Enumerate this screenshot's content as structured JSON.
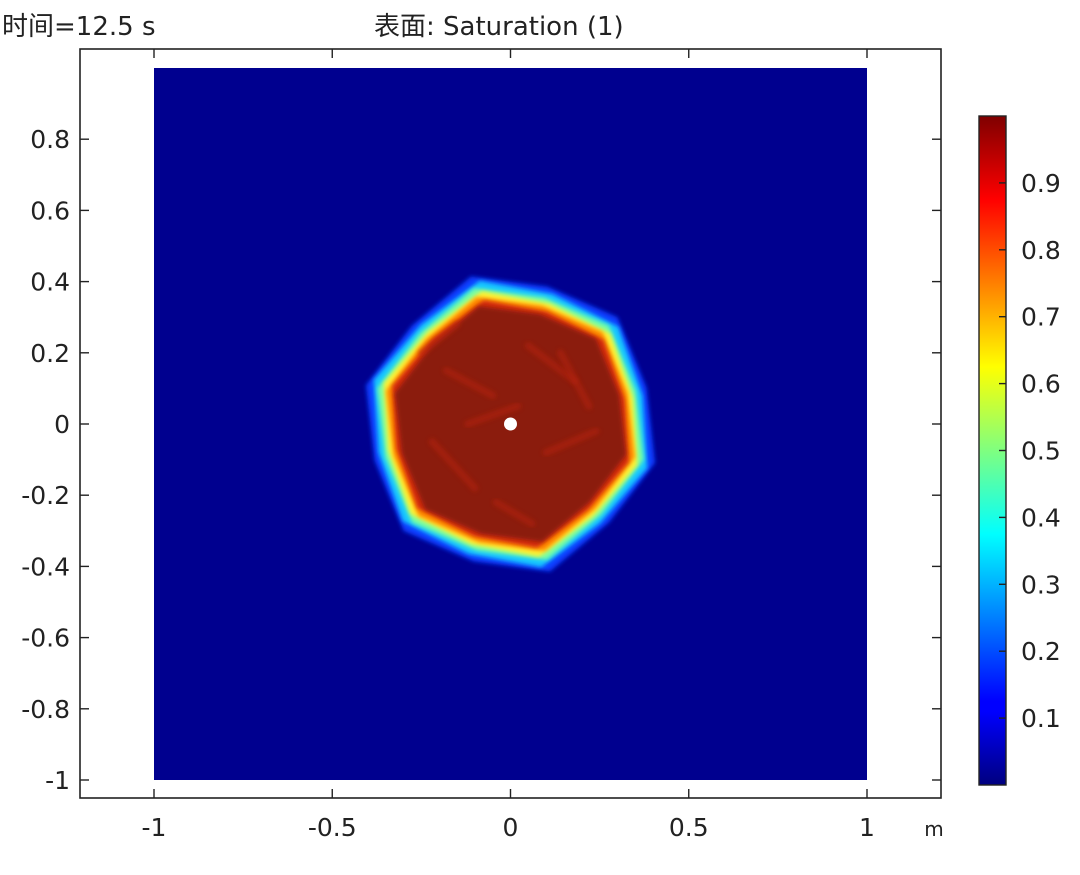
{
  "header": {
    "time_label": "时间=12.5 s",
    "surface_label": "表面: Saturation (1)"
  },
  "chart_data": {
    "type": "heatmap",
    "title": "表面: Saturation (1)",
    "subtitle": "时间=12.5 s",
    "xlabel": "m",
    "ylabel": "",
    "xlim": [
      -1.21,
      1.21
    ],
    "ylim": [
      -1.05,
      1.05
    ],
    "domain": {
      "x": [
        -1,
        1
      ],
      "y": [
        -1,
        1
      ]
    },
    "x_ticks": [
      {
        "value": -1,
        "label": "-1"
      },
      {
        "value": -0.5,
        "label": "-0.5"
      },
      {
        "value": 0,
        "label": "0"
      },
      {
        "value": 0.5,
        "label": "0.5"
      },
      {
        "value": 1,
        "label": "1"
      }
    ],
    "y_ticks": [
      {
        "value": 0.8,
        "label": "0.8"
      },
      {
        "value": 0.6,
        "label": "0.6"
      },
      {
        "value": 0.4,
        "label": "0.4"
      },
      {
        "value": 0.2,
        "label": "0.2"
      },
      {
        "value": 0,
        "label": "0"
      },
      {
        "value": -0.2,
        "label": "-0.2"
      },
      {
        "value": -0.4,
        "label": "-0.4"
      },
      {
        "value": -0.6,
        "label": "-0.6"
      },
      {
        "value": -0.8,
        "label": "-0.8"
      },
      {
        "value": -1,
        "label": "-1"
      }
    ],
    "field": {
      "description_value_background": 0.0,
      "saturated_value": 0.98,
      "center": [
        0,
        0
      ],
      "plume_radius": 0.33,
      "plume_edge_radius": 0.42,
      "plume_polygon_sides": 12,
      "source_point": [
        0,
        0
      ]
    },
    "colorbar": {
      "colormap": "jet",
      "min": 0.0,
      "max": 1.0,
      "ticks": [
        {
          "value": 0.1,
          "label": "0.1"
        },
        {
          "value": 0.2,
          "label": "0.2"
        },
        {
          "value": 0.3,
          "label": "0.3"
        },
        {
          "value": 0.4,
          "label": "0.4"
        },
        {
          "value": 0.5,
          "label": "0.5"
        },
        {
          "value": 0.6,
          "label": "0.6"
        },
        {
          "value": 0.7,
          "label": "0.7"
        },
        {
          "value": 0.8,
          "label": "0.8"
        },
        {
          "value": 0.9,
          "label": "0.9"
        }
      ]
    },
    "colors": {
      "background": "#00008F",
      "core": "#8B1A0E",
      "source_point": "#ffffff"
    }
  }
}
